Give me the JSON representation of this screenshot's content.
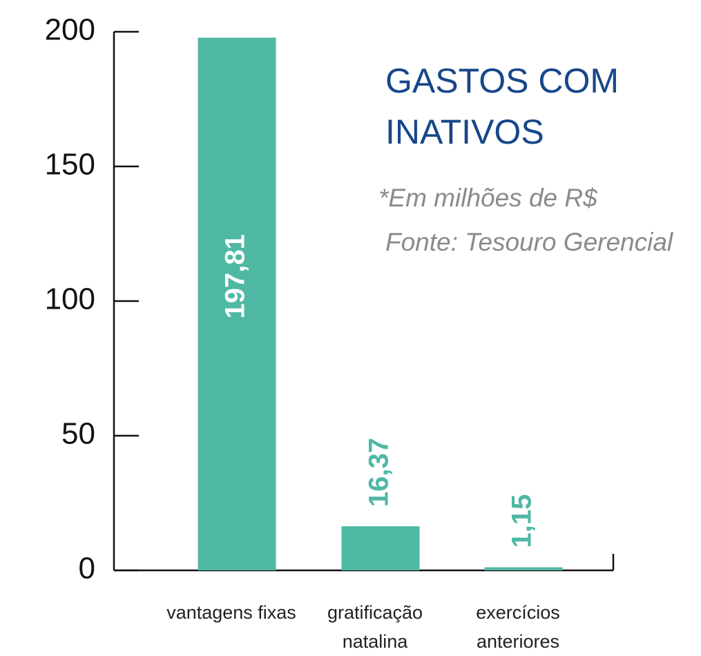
{
  "chart_data": {
    "type": "bar",
    "title": "GASTOS COM INATIVOS",
    "note": "*Em milhões de R$",
    "source": "Fonte: Tesouro Gerencial",
    "categories": [
      "vantagens fixas",
      "gratificação natalina",
      "exercícios anteriores"
    ],
    "values": [
      197.81,
      16.37,
      1.15
    ],
    "value_labels": [
      "197,81",
      "16,37",
      "1,15"
    ],
    "color": "#4fb8a3",
    "ylim": [
      0,
      200
    ],
    "yticks": [
      0,
      50,
      100,
      150,
      200
    ],
    "grid": false
  }
}
